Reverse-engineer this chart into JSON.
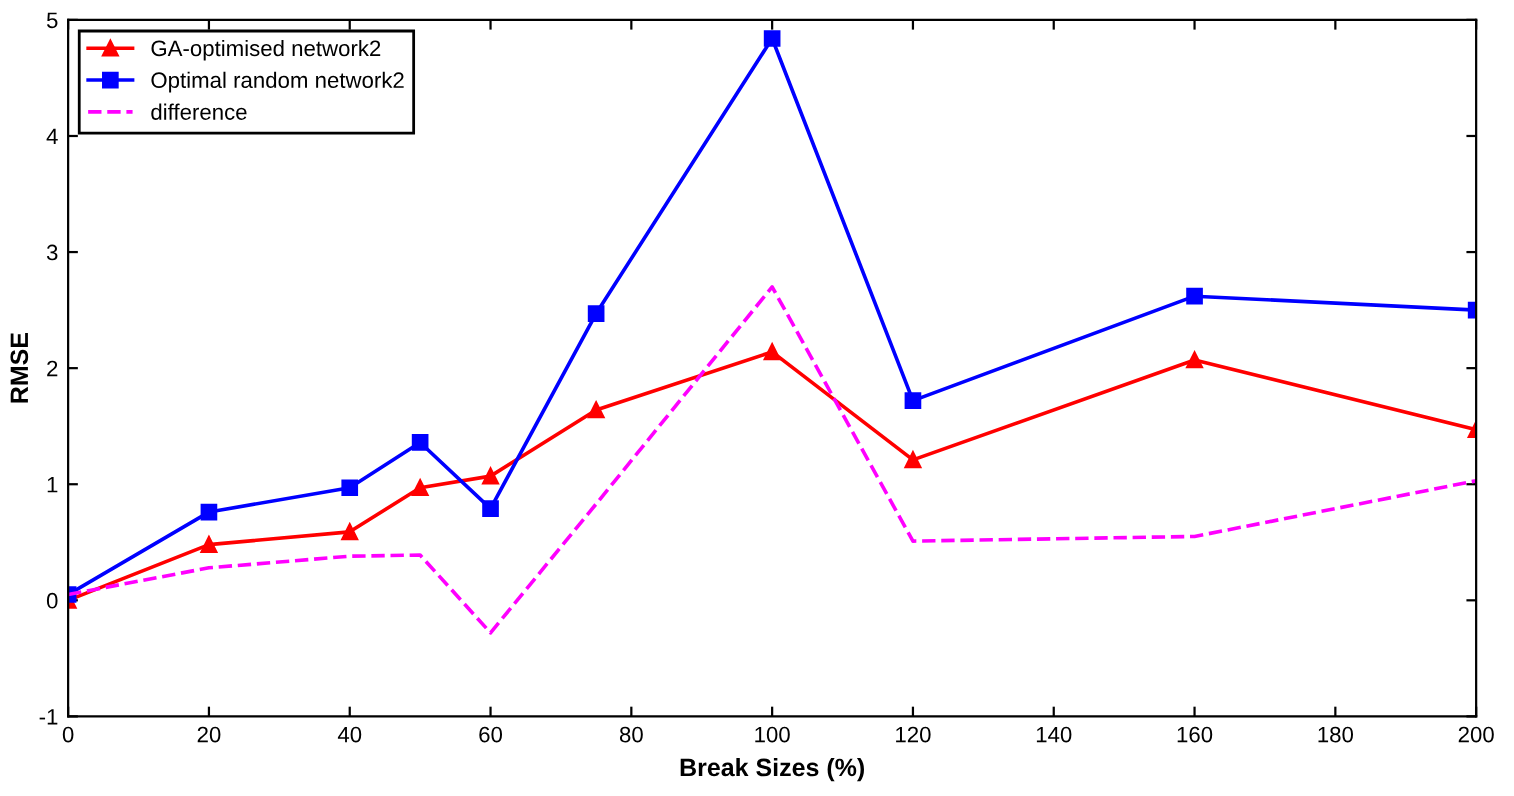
{
  "chart_data": {
    "type": "line",
    "xlabel": "Break Sizes (%)",
    "ylabel": "RMSE",
    "x": [
      0,
      20,
      40,
      50,
      60,
      75,
      100,
      120,
      160,
      200
    ],
    "series": [
      {
        "name": "GA-optimised network2",
        "color": "#ff0000",
        "marker": "triangle",
        "line_style": "solid",
        "values": [
          0.0,
          0.48,
          0.59,
          0.97,
          1.07,
          1.64,
          2.14,
          1.21,
          2.07,
          1.47
        ]
      },
      {
        "name": "Optimal random network2",
        "color": "#0000ff",
        "marker": "square",
        "line_style": "solid",
        "values": [
          0.05,
          0.76,
          0.97,
          1.36,
          0.79,
          2.47,
          4.84,
          1.72,
          2.62,
          2.5
        ]
      },
      {
        "name": "difference",
        "color": "#ff00ff",
        "marker": "none",
        "line_style": "dashed",
        "values": [
          0.05,
          0.28,
          0.38,
          0.39,
          -0.28,
          0.83,
          2.7,
          0.51,
          0.55,
          1.03
        ]
      }
    ],
    "xlim": [
      0,
      200
    ],
    "xticks": [
      0,
      20,
      40,
      60,
      80,
      100,
      120,
      140,
      160,
      180,
      200
    ],
    "ylim": [
      -1,
      5
    ],
    "yticks": [
      -1,
      0,
      1,
      2,
      3,
      4,
      5
    ],
    "grid": false,
    "legend": "top left"
  }
}
